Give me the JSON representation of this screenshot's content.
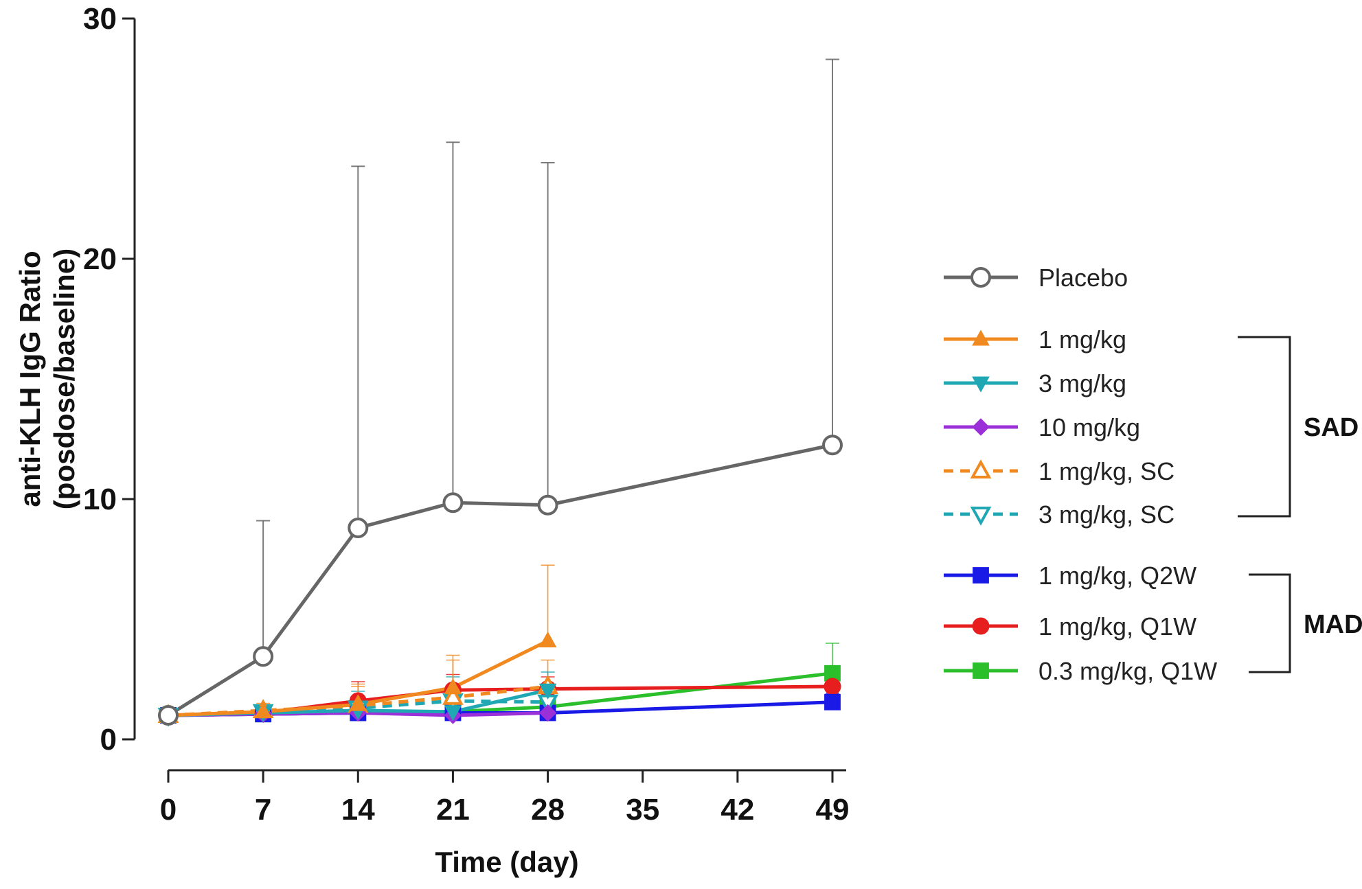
{
  "chart_data": {
    "type": "line",
    "xlabel": "Time (day)",
    "ylabel_lines": [
      "anti-KLH IgG Ratio",
      "(posdose/baseline)"
    ],
    "xlim": [
      0,
      49
    ],
    "ylim": [
      0,
      30
    ],
    "xticks": [
      0,
      7,
      14,
      21,
      28,
      35,
      42,
      49
    ],
    "yticks": [
      0,
      10,
      20,
      30
    ],
    "grid": false,
    "legend_position": "right",
    "series": [
      {
        "name": "Placebo",
        "color": "#666666",
        "marker": "circle-open",
        "dash": false,
        "x": [
          0,
          7,
          14,
          21,
          28,
          49
        ],
        "y": [
          1.0,
          3.45,
          8.8,
          9.85,
          9.75,
          12.25
        ],
        "err_upper": [
          1.0,
          9.1,
          23.85,
          24.85,
          24.0,
          28.3
        ]
      },
      {
        "name": "1 mg/kg",
        "color": "#f0891f",
        "marker": "triangle-up",
        "dash": false,
        "x": [
          0,
          7,
          14,
          21,
          28
        ],
        "y": [
          1.0,
          1.15,
          1.45,
          2.15,
          4.1
        ],
        "err_upper": [
          1.0,
          1.4,
          2.2,
          3.5,
          7.25
        ]
      },
      {
        "name": "3 mg/kg",
        "color": "#1fa8b4",
        "marker": "triangle-down",
        "dash": false,
        "x": [
          0,
          7,
          14,
          21,
          28
        ],
        "y": [
          1.0,
          1.1,
          1.2,
          1.15,
          2.05
        ],
        "err_upper": [
          1.0,
          1.3,
          1.8,
          1.6,
          2.8
        ]
      },
      {
        "name": "10 mg/kg",
        "color": "#9b30d9",
        "marker": "diamond",
        "dash": false,
        "x": [
          0,
          7,
          14,
          21,
          28
        ],
        "y": [
          1.0,
          1.05,
          1.1,
          1.0,
          1.1
        ],
        "err_upper": [
          1.0,
          1.2,
          1.3,
          1.2,
          1.3
        ]
      },
      {
        "name": "1 mg/kg, SC",
        "color": "#f0891f",
        "marker": "triangle-up-open",
        "dash": true,
        "x": [
          0,
          7,
          14,
          21,
          28
        ],
        "y": [
          1.0,
          1.2,
          1.4,
          1.75,
          2.2
        ],
        "err_upper": [
          1.0,
          1.5,
          2.3,
          3.3,
          3.3
        ]
      },
      {
        "name": "3 mg/kg, SC",
        "color": "#1fa8b4",
        "marker": "triangle-down-open",
        "dash": true,
        "x": [
          0,
          7,
          14,
          21,
          28
        ],
        "y": [
          1.0,
          1.15,
          1.3,
          1.6,
          1.55
        ],
        "err_upper": [
          1.0,
          1.4,
          2.0,
          2.6,
          2.2
        ]
      },
      {
        "name": "1 mg/kg, Q2W",
        "color": "#1a1ae6",
        "marker": "square",
        "dash": false,
        "x": [
          0,
          7,
          14,
          21,
          28,
          49
        ],
        "y": [
          1.0,
          1.05,
          1.1,
          1.1,
          1.1,
          1.55
        ],
        "err_upper": [
          1.0,
          1.2,
          1.3,
          1.3,
          1.3,
          1.9
        ]
      },
      {
        "name": "1 mg/kg, Q1W",
        "color": "#e61e1e",
        "marker": "circle",
        "dash": false,
        "x": [
          0,
          7,
          14,
          21,
          28,
          49
        ],
        "y": [
          1.0,
          1.1,
          1.6,
          2.05,
          2.1,
          2.2
        ],
        "err_upper": [
          1.0,
          1.3,
          2.4,
          2.7,
          2.6,
          2.6
        ]
      },
      {
        "name": "0.3 mg/kg, Q1W",
        "color": "#2bbf2b",
        "marker": "square",
        "dash": false,
        "x": [
          0,
          7,
          14,
          21,
          28,
          49
        ],
        "y": [
          1.0,
          1.05,
          1.1,
          1.15,
          1.35,
          2.75
        ],
        "err_upper": [
          1.0,
          1.2,
          1.4,
          1.6,
          1.7,
          4.0
        ]
      }
    ],
    "groups": [
      {
        "label": "SAD",
        "series": [
          "1 mg/kg",
          "3 mg/kg",
          "10 mg/kg",
          "1 mg/kg, SC",
          "3 mg/kg, SC"
        ]
      },
      {
        "label": "MAD",
        "series": [
          "1 mg/kg, Q2W",
          "1 mg/kg, Q1W",
          "0.3 mg/kg, Q1W"
        ]
      }
    ]
  }
}
